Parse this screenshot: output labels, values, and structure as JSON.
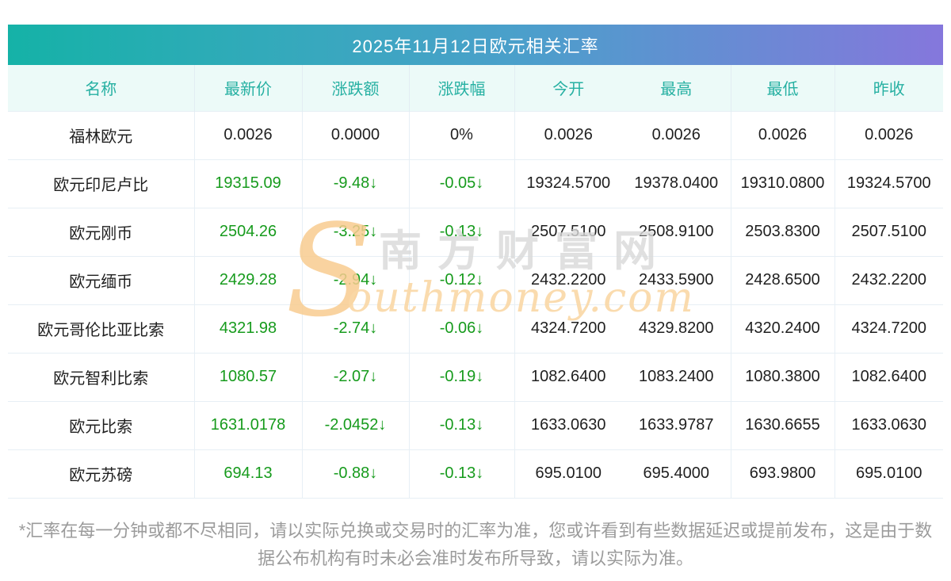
{
  "page": {
    "title": "2025年11月12日欧元相关汇率",
    "footnote": "*汇率在每一分钟或都不尽相同，请以实际兑换或交易时的汇率为准，您或许看到有些数据延迟或提前发布，这是由于数据公布机构有时未必会准时发布所导致，请以实际为准。"
  },
  "watermark": {
    "s_glyph": "S",
    "cn_text": "南方财富网",
    "en_text": "outhmoney.com"
  },
  "colors": {
    "title_gradient_left": "#15b2a7",
    "title_gradient_right": "#8577dc",
    "header_bg": "#ecfaf8",
    "header_text": "#26b0a2",
    "down_green": "#179b1d",
    "body_text": "#1f1f1f",
    "cell_border": "#e7eff5",
    "footnote_text": "#9b9b9b",
    "watermark_gold": "#f8cc90",
    "watermark_gray": "#d9d9d9"
  },
  "table": {
    "headers": [
      "名称",
      "最新价",
      "涨跌额",
      "涨跌幅",
      "今开",
      "最高",
      "最低",
      "昨收"
    ],
    "rows": [
      {
        "name": "福林欧元",
        "latest": "0.0026",
        "change": "0.0000",
        "change_pct": "0%",
        "open": "0.0026",
        "high": "0.0026",
        "low": "0.0026",
        "prev_close": "0.0026",
        "trend": "flat"
      },
      {
        "name": "欧元印尼卢比",
        "latest": "19315.09",
        "change": "-9.48↓",
        "change_pct": "-0.05↓",
        "open": "19324.5700",
        "high": "19378.0400",
        "low": "19310.0800",
        "prev_close": "19324.5700",
        "trend": "down"
      },
      {
        "name": "欧元刚币",
        "latest": "2504.26",
        "change": "-3.25↓",
        "change_pct": "-0.13↓",
        "open": "2507.5100",
        "high": "2508.9100",
        "low": "2503.8300",
        "prev_close": "2507.5100",
        "trend": "down"
      },
      {
        "name": "欧元缅币",
        "latest": "2429.28",
        "change": "-2.94↓",
        "change_pct": "-0.12↓",
        "open": "2432.2200",
        "high": "2433.5900",
        "low": "2428.6500",
        "prev_close": "2432.2200",
        "trend": "down"
      },
      {
        "name": "欧元哥伦比亚比索",
        "latest": "4321.98",
        "change": "-2.74↓",
        "change_pct": "-0.06↓",
        "open": "4324.7200",
        "high": "4329.8200",
        "low": "4320.2400",
        "prev_close": "4324.7200",
        "trend": "down"
      },
      {
        "name": "欧元智利比索",
        "latest": "1080.57",
        "change": "-2.07↓",
        "change_pct": "-0.19↓",
        "open": "1082.6400",
        "high": "1083.2400",
        "low": "1080.3800",
        "prev_close": "1082.6400",
        "trend": "down"
      },
      {
        "name": "欧元比索",
        "latest": "1631.0178",
        "change": "-2.0452↓",
        "change_pct": "-0.13↓",
        "open": "1633.0630",
        "high": "1633.9787",
        "low": "1630.6655",
        "prev_close": "1633.0630",
        "trend": "down"
      },
      {
        "name": "欧元苏磅",
        "latest": "694.13",
        "change": "-0.88↓",
        "change_pct": "-0.13↓",
        "open": "695.0100",
        "high": "695.4000",
        "low": "693.9800",
        "prev_close": "695.0100",
        "trend": "down"
      }
    ]
  }
}
